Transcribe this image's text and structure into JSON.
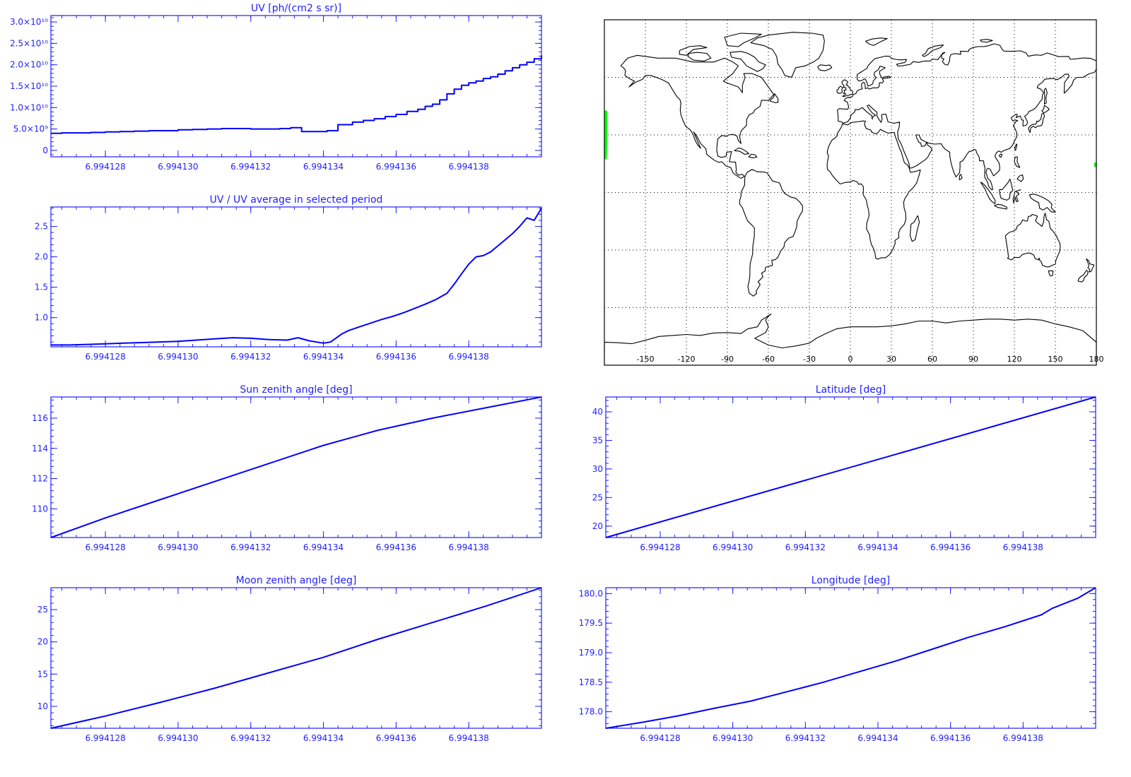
{
  "colors": {
    "axis": "#1f1fff",
    "series": "#0000ff",
    "map_frame": "#000000",
    "coast": "#000000",
    "grid": "#000000",
    "track": "#00ff00",
    "background": "#ffffff"
  },
  "chart_data": [
    {
      "id": "uv",
      "type": "line",
      "title": "UV [ph/(cm2 s sr)]",
      "xlabel": "",
      "ylabel": "",
      "step": true,
      "xlim": [
        6.9941265,
        6.99414
      ],
      "ylim": [
        -1500000000.0,
        31500000000.0
      ],
      "xticks": [
        6.994128,
        6.99413,
        6.994132,
        6.994134,
        6.994136,
        6.994138
      ],
      "xtick_labels": [
        "6.994128",
        "6.994130",
        "6.994132",
        "6.994134",
        "6.994136",
        "6.994138"
      ],
      "yticks": [
        0,
        5000000000.0,
        10000000000.0,
        15000000000.0,
        20000000000.0,
        25000000000.0,
        30000000000.0
      ],
      "ytick_labels": [
        "0",
        "5.0×10⁹",
        "1.0×10¹⁰",
        "1.5×10¹⁰",
        "2.0×10¹⁰",
        "2.5×10¹⁰",
        "3.0×10¹⁰"
      ],
      "grid": false,
      "series": [
        {
          "x": [
            6.9941265,
            6.9941268,
            6.9941272,
            6.9941276,
            6.994128,
            6.9941284,
            6.9941288,
            6.9941292,
            6.9941296,
            6.99413,
            6.9941304,
            6.9941308,
            6.9941312,
            6.9941316,
            6.994132,
            6.9941324,
            6.9941328,
            6.9941331,
            6.9941334,
            6.9941337,
            6.9941341,
            6.9941344,
            6.9941348,
            6.9941351,
            6.9941354,
            6.9941357,
            6.994136,
            6.9941363,
            6.9941366,
            6.9941368,
            6.994137,
            6.9941372,
            6.9941374,
            6.9941376,
            6.9941378,
            6.994138,
            6.9941382,
            6.9941384,
            6.9941386,
            6.9941388,
            6.994139,
            6.9941392,
            6.9941394,
            6.9941396,
            6.9941398,
            6.99414
          ],
          "y": [
            4000000000.0,
            4100000000.0,
            4100000000.0,
            4200000000.0,
            4300000000.0,
            4400000000.0,
            4500000000.0,
            4600000000.0,
            4600000000.0,
            4800000000.0,
            4900000000.0,
            5000000000.0,
            5100000000.0,
            5100000000.0,
            5000000000.0,
            5000000000.0,
            5100000000.0,
            5300000000.0,
            4400000000.0,
            4400000000.0,
            4600000000.0,
            6000000000.0,
            6600000000.0,
            7000000000.0,
            7400000000.0,
            7900000000.0,
            8400000000.0,
            9100000000.0,
            9600000000.0,
            10300000000.0,
            10800000000.0,
            11800000000.0,
            13200000000.0,
            14300000000.0,
            15200000000.0,
            15800000000.0,
            16200000000.0,
            16800000000.0,
            17200000000.0,
            17800000000.0,
            18600000000.0,
            19300000000.0,
            20000000000.0,
            20600000000.0,
            21400000000.0,
            22200000000.0
          ]
        }
      ]
    },
    {
      "id": "uv-ratio",
      "type": "line",
      "title": "UV / UV average in selected period",
      "xlabel": "",
      "ylabel": "",
      "xlim": [
        6.9941265,
        6.99414
      ],
      "ylim": [
        0.52,
        2.82
      ],
      "xticks": [
        6.994128,
        6.99413,
        6.994132,
        6.994134,
        6.994136,
        6.994138
      ],
      "xtick_labels": [
        "6.994128",
        "6.994130",
        "6.994132",
        "6.994134",
        "6.994136",
        "6.994138"
      ],
      "yticks": [
        1.0,
        1.5,
        2.0,
        2.5
      ],
      "ytick_labels": [
        "1.0",
        "1.5",
        "2.0",
        "2.5"
      ],
      "grid": false,
      "series": [
        {
          "x": [
            6.9941265,
            6.994127,
            6.9941275,
            6.994128,
            6.9941285,
            6.994129,
            6.9941295,
            6.99413,
            6.9941305,
            6.994131,
            6.9941315,
            6.994132,
            6.9941325,
            6.994133,
            6.9941333,
            6.9941336,
            6.994134,
            6.9941342,
            6.9941345,
            6.9941347,
            6.994135,
            6.9941353,
            6.9941356,
            6.9941359,
            6.9941362,
            6.9941365,
            6.9941368,
            6.9941371,
            6.9941374,
            6.9941376,
            6.9941378,
            6.994138,
            6.9941382,
            6.9941384,
            6.9941386,
            6.9941388,
            6.994139,
            6.9941392,
            6.9941394,
            6.9941396,
            6.9941398,
            6.99414
          ],
          "y": [
            0.55,
            0.55,
            0.56,
            0.57,
            0.58,
            0.59,
            0.6,
            0.61,
            0.63,
            0.65,
            0.67,
            0.66,
            0.64,
            0.63,
            0.67,
            0.62,
            0.58,
            0.6,
            0.73,
            0.79,
            0.85,
            0.91,
            0.97,
            1.02,
            1.08,
            1.15,
            1.22,
            1.3,
            1.4,
            1.55,
            1.72,
            1.88,
            2.0,
            2.02,
            2.08,
            2.18,
            2.28,
            2.38,
            2.5,
            2.64,
            2.6,
            2.8
          ]
        }
      ]
    },
    {
      "id": "sun-zenith",
      "type": "line",
      "title": "Sun zenith angle [deg]",
      "xlabel": "",
      "ylabel": "",
      "xlim": [
        6.9941265,
        6.99414
      ],
      "ylim": [
        108.1,
        117.4
      ],
      "xticks": [
        6.994128,
        6.99413,
        6.994132,
        6.994134,
        6.994136,
        6.994138
      ],
      "xtick_labels": [
        "6.994128",
        "6.994130",
        "6.994132",
        "6.994134",
        "6.994136",
        "6.994138"
      ],
      "yticks": [
        110,
        112,
        114,
        116
      ],
      "ytick_labels": [
        "110",
        "112",
        "114",
        "116"
      ],
      "grid": false,
      "series": [
        {
          "x": [
            6.9941265,
            6.994128,
            6.9941295,
            6.994131,
            6.9941325,
            6.994134,
            6.9941355,
            6.994137,
            6.9941385,
            6.99414
          ],
          "y": [
            108.1,
            109.4,
            110.6,
            111.8,
            113.0,
            114.2,
            115.2,
            116.0,
            116.7,
            117.4
          ]
        }
      ]
    },
    {
      "id": "latitude",
      "type": "line",
      "title": "Latitude [deg]",
      "xlabel": "",
      "ylabel": "",
      "xlim": [
        6.9941265,
        6.99414
      ],
      "ylim": [
        18.0,
        42.6
      ],
      "xticks": [
        6.994128,
        6.99413,
        6.994132,
        6.994134,
        6.994136,
        6.994138
      ],
      "xtick_labels": [
        "6.994128",
        "6.994130",
        "6.994132",
        "6.994134",
        "6.994136",
        "6.994138"
      ],
      "yticks": [
        20,
        25,
        30,
        35,
        40
      ],
      "ytick_labels": [
        "20",
        "25",
        "30",
        "35",
        "40"
      ],
      "grid": false,
      "series": [
        {
          "x": [
            6.9941265,
            6.99414
          ],
          "y": [
            18.0,
            42.6
          ]
        }
      ]
    },
    {
      "id": "moon-zenith",
      "type": "line",
      "title": "Moon zenith angle [deg]",
      "xlabel": "",
      "ylabel": "",
      "xlim": [
        6.9941265,
        6.99414
      ],
      "ylim": [
        6.6,
        28.4
      ],
      "xticks": [
        6.994128,
        6.99413,
        6.994132,
        6.994134,
        6.994136,
        6.994138
      ],
      "xtick_labels": [
        "6.994128",
        "6.994130",
        "6.994132",
        "6.994134",
        "6.994136",
        "6.994138"
      ],
      "yticks": [
        10,
        15,
        20,
        25
      ],
      "ytick_labels": [
        "10",
        "15",
        "20",
        "25"
      ],
      "grid": false,
      "series": [
        {
          "x": [
            6.9941265,
            6.994128,
            6.9941295,
            6.994131,
            6.9941325,
            6.994134,
            6.9941355,
            6.994137,
            6.9941385,
            6.99414
          ],
          "y": [
            6.6,
            8.5,
            10.6,
            12.8,
            15.2,
            17.6,
            20.4,
            23.0,
            25.6,
            28.4
          ]
        }
      ]
    },
    {
      "id": "longitude",
      "type": "line",
      "title": "Longitude [deg]",
      "xlabel": "",
      "ylabel": "",
      "xlim": [
        6.9941265,
        6.99414
      ],
      "ylim": [
        177.72,
        180.1
      ],
      "xticks": [
        6.994128,
        6.99413,
        6.994132,
        6.994134,
        6.994136,
        6.994138
      ],
      "xtick_labels": [
        "6.994128",
        "6.994130",
        "6.994132",
        "6.994134",
        "6.994136",
        "6.994138"
      ],
      "yticks": [
        178.0,
        178.5,
        179.0,
        179.5,
        180.0
      ],
      "ytick_labels": [
        "178.0",
        "178.5",
        "179.0",
        "179.5",
        "180.0"
      ],
      "grid": false,
      "series": [
        {
          "x": [
            6.9941265,
            6.9941275,
            6.9941285,
            6.9941295,
            6.9941305,
            6.9941315,
            6.9941325,
            6.9941335,
            6.9941345,
            6.9941355,
            6.9941365,
            6.9941375,
            6.9941385,
            6.9941388,
            6.9941395,
            6.99414
          ],
          "y": [
            177.72,
            177.82,
            177.93,
            178.06,
            178.18,
            178.34,
            178.5,
            178.68,
            178.86,
            179.06,
            179.26,
            179.44,
            179.64,
            179.75,
            179.92,
            180.1
          ]
        }
      ]
    },
    {
      "id": "world-map",
      "type": "map",
      "title": "",
      "xlim": [
        -180,
        180
      ],
      "ylim": [
        -90,
        90
      ],
      "xticks": [
        -150,
        -120,
        -90,
        -60,
        -30,
        0,
        30,
        60,
        90,
        120,
        150,
        180
      ],
      "xtick_labels": [
        "-150",
        "-120",
        "-90",
        "-60",
        "-30",
        "0",
        "30",
        "60",
        "90",
        "120",
        "150",
        "180"
      ],
      "grid_lon": [
        -150,
        -120,
        -90,
        -60,
        -30,
        0,
        30,
        60,
        90,
        120,
        150
      ],
      "grid_lat": [
        -60,
        -30,
        0,
        30,
        60
      ],
      "grid": true,
      "track": [
        {
          "lon": [
            179.3,
            179.3
          ],
          "lat": [
            14,
            15
          ]
        },
        {
          "lon": [
            -179.2,
            -179.0,
            -178.9,
            -178.8
          ],
          "lat": [
            18,
            25,
            33,
            42
          ]
        }
      ]
    }
  ]
}
